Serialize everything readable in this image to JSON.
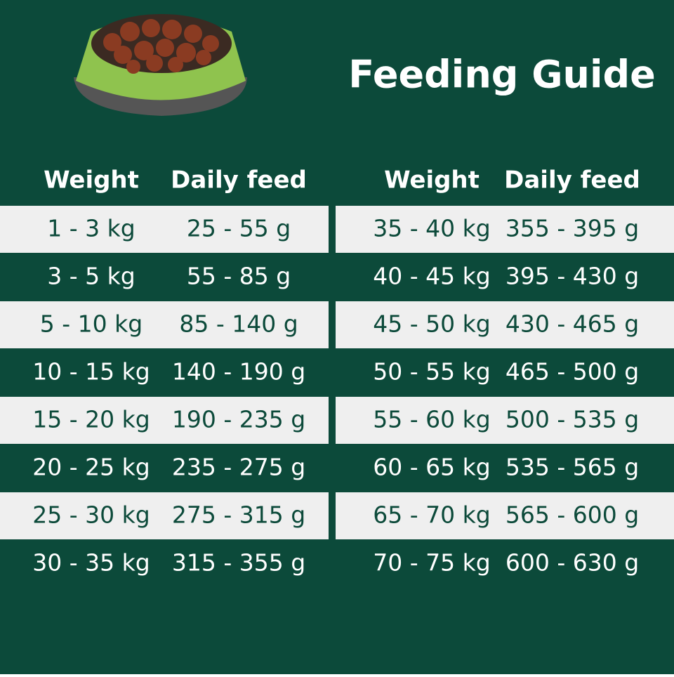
{
  "title": "Feeding Guide",
  "tables": [
    {
      "headers": [
        "Weight",
        "Daily feed"
      ],
      "rows": [
        [
          "1 - 3 kg",
          "25 - 55 g"
        ],
        [
          "3 - 5 kg",
          "55 - 85 g"
        ],
        [
          "5 - 10 kg",
          "85 - 140 g"
        ],
        [
          "10 - 15 kg",
          "140 - 190 g"
        ],
        [
          "15 - 20 kg",
          "190 - 235 g"
        ],
        [
          "20 - 25 kg",
          "235 - 275 g"
        ],
        [
          "25 - 30 kg",
          "275 - 315 g"
        ],
        [
          "30 - 35 kg",
          "315 - 355 g"
        ]
      ]
    },
    {
      "headers": [
        "Weight",
        "Daily feed"
      ],
      "rows": [
        [
          "35 - 40 kg",
          "355 - 395 g"
        ],
        [
          "40 - 45 kg",
          "395 - 430 g"
        ],
        [
          "45 - 50 kg",
          "430 - 465 g"
        ],
        [
          "50 - 55 kg",
          "465 - 500 g"
        ],
        [
          "55 - 60 kg",
          "500 - 535 g"
        ],
        [
          "60 - 65 kg",
          "535 - 565 g"
        ],
        [
          "65 - 70 kg",
          "565 - 600 g"
        ],
        [
          "70 - 75 kg",
          "600 - 630 g"
        ]
      ]
    }
  ]
}
